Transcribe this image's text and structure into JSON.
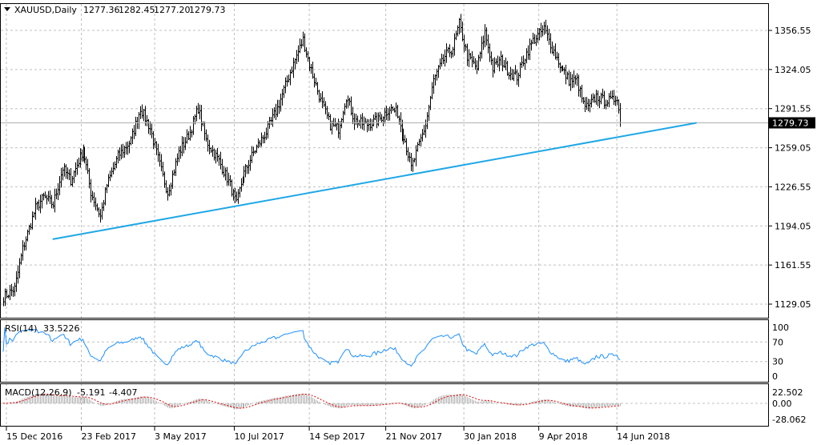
{
  "header": {
    "symbol": "XAUUSD,Daily",
    "open": "1277.36",
    "high": "1282.45",
    "low": "1277.20",
    "close": "1279.73"
  },
  "colors": {
    "bars": "#000000",
    "trendline": "#1ea7e6",
    "rsi": "#1e90ff",
    "macd_hist": "#b0b0b0",
    "macd_signal": "#e00000",
    "grid": "#c0c0c0"
  },
  "chart_data": [
    {
      "type": "line",
      "title": "XAUUSD Daily",
      "price_axis_labels": [
        "1356.55",
        "1324.05",
        "1291.55",
        "1259.05",
        "1226.55",
        "1194.05",
        "1161.55",
        "1129.05"
      ],
      "price_axis_values": [
        1356.55,
        1324.05,
        1291.55,
        1259.05,
        1226.55,
        1194.05,
        1161.55,
        1129.05
      ],
      "ylim": [
        1114,
        1375
      ],
      "current_price": 1279.73,
      "current_price_label": "1279.73",
      "x_labels": [
        "15 Dec 2016",
        "23 Feb 2017",
        "3 May 2017",
        "10 Jul 2017",
        "14 Sep 2017",
        "21 Nov 2017",
        "30 Jan 2018",
        "9 Apr 2018",
        "14 Jun 2018"
      ],
      "x_label_bar_index": [
        2,
        49,
        95,
        145,
        192,
        240,
        289,
        336,
        385
      ],
      "close_path_bar_close": [
        [
          0,
          1135
        ],
        [
          7,
          1142
        ],
        [
          12,
          1175
        ],
        [
          20,
          1209
        ],
        [
          25,
          1218
        ],
        [
          31,
          1212
        ],
        [
          37,
          1242
        ],
        [
          42,
          1232
        ],
        [
          50,
          1258
        ],
        [
          55,
          1222
        ],
        [
          61,
          1202
        ],
        [
          65,
          1228
        ],
        [
          72,
          1252
        ],
        [
          80,
          1265
        ],
        [
          86,
          1292
        ],
        [
          92,
          1275
        ],
        [
          100,
          1235
        ],
        [
          103,
          1222
        ],
        [
          110,
          1255
        ],
        [
          117,
          1272
        ],
        [
          122,
          1292
        ],
        [
          127,
          1265
        ],
        [
          135,
          1248
        ],
        [
          142,
          1228
        ],
        [
          146,
          1212
        ],
        [
          150,
          1235
        ],
        [
          157,
          1255
        ],
        [
          165,
          1272
        ],
        [
          172,
          1292
        ],
        [
          180,
          1322
        ],
        [
          188,
          1349
        ],
        [
          192,
          1328
        ],
        [
          199,
          1298
        ],
        [
          205,
          1278
        ],
        [
          210,
          1275
        ],
        [
          215,
          1302
        ],
        [
          220,
          1282
        ],
        [
          227,
          1278
        ],
        [
          235,
          1282
        ],
        [
          242,
          1292
        ],
        [
          247,
          1288
        ],
        [
          252,
          1265
        ],
        [
          256,
          1242
        ],
        [
          260,
          1258
        ],
        [
          265,
          1278
        ],
        [
          270,
          1315
        ],
        [
          277,
          1335
        ],
        [
          282,
          1342
        ],
        [
          286,
          1362
        ],
        [
          291,
          1335
        ],
        [
          297,
          1325
        ],
        [
          302,
          1355
        ],
        [
          307,
          1325
        ],
        [
          312,
          1332
        ],
        [
          317,
          1322
        ],
        [
          322,
          1318
        ],
        [
          327,
          1335
        ],
        [
          332,
          1348
        ],
        [
          339,
          1358
        ],
        [
          344,
          1342
        ],
        [
          350,
          1325
        ],
        [
          355,
          1315
        ],
        [
          360,
          1315
        ],
        [
          364,
          1295
        ],
        [
          367,
          1292
        ],
        [
          372,
          1302
        ],
        [
          377,
          1298
        ],
        [
          382,
          1298
        ],
        [
          385,
          1302
        ],
        [
          387,
          1279.73
        ]
      ],
      "trendline": {
        "from": [
          31,
          1183
        ],
        "to": [
          435,
          1279.7
        ]
      }
    },
    {
      "type": "line",
      "title": "RSI(14)",
      "label": "RSI(14)",
      "value": "33.5226",
      "axis_labels": [
        "100",
        "70",
        "30",
        "0"
      ],
      "axis_values": [
        100,
        70,
        30,
        0
      ],
      "ylim": [
        0,
        100
      ]
    },
    {
      "type": "bar",
      "title": "MACD(12,26,9)",
      "label": "MACD(12,26,9)",
      "macd_value": "-5.191",
      "signal_value": "-4.407",
      "axis_labels": [
        "22.502",
        "0.00",
        "-28.062"
      ],
      "axis_values": [
        22.502,
        0,
        -28.062
      ]
    }
  ]
}
